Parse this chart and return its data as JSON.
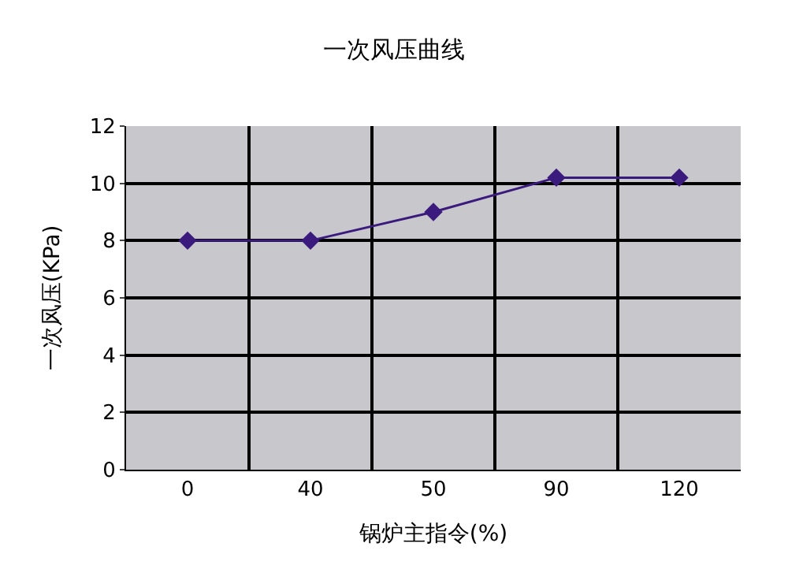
{
  "chart_data": {
    "type": "line",
    "title": "一次风压曲线",
    "xlabel": "锅炉主指令(%)",
    "ylabel": "一次风压(KPa)",
    "categories": [
      "0",
      "40",
      "50",
      "90",
      "120"
    ],
    "series": [
      {
        "color": "#3b1a7e",
        "values": [
          8,
          8,
          9,
          10.2,
          10.2
        ]
      }
    ],
    "ylim": [
      0,
      12
    ],
    "yticks": [
      0,
      2,
      4,
      6,
      8,
      10,
      12
    ],
    "grid": true,
    "marker": "diamond",
    "line_style": "solid"
  }
}
